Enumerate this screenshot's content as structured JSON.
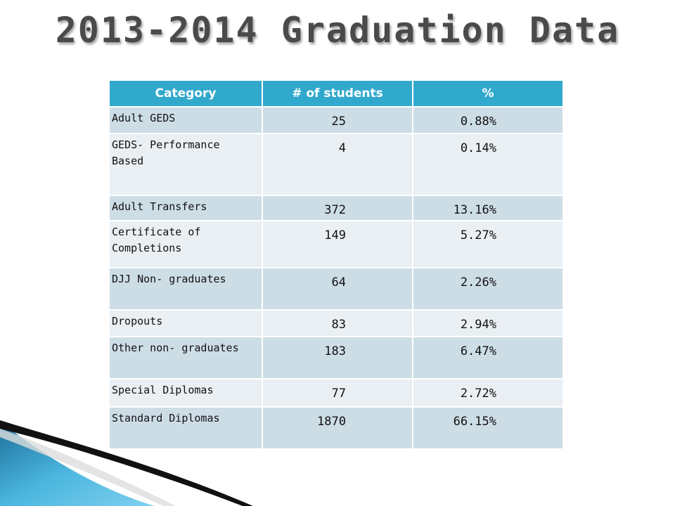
{
  "title": "2013-2014 Graduation Data",
  "table": {
    "headers": [
      "Category",
      "# of students",
      "%"
    ],
    "rows": [
      {
        "category": "Adult GEDS",
        "students": "25",
        "percent": "0.88%"
      },
      {
        "category": "GEDS- Performance Based",
        "students": "4",
        "percent": "0.14%"
      },
      {
        "category": "Adult Transfers",
        "students": "372",
        "percent": "13.16%"
      },
      {
        "category": "Certificate of Completions",
        "students": "149",
        "percent": "5.27%"
      },
      {
        "category": "DJJ Non- graduates",
        "students": "64",
        "percent": "2.26%"
      },
      {
        "category": "Dropouts",
        "students": "83",
        "percent": "2.94%"
      },
      {
        "category": "Other non- graduates",
        "students": "183",
        "percent": "6.47%"
      },
      {
        "category": "Special Diplomas",
        "students": "77",
        "percent": "2.72%"
      },
      {
        "category": "Standard Diplomas",
        "students": "1870",
        "percent": "66.15%"
      }
    ]
  },
  "colors": {
    "header_bg": "#31a9cc",
    "row_dark": "#cddde6",
    "row_light": "#e9eff3",
    "title": "#4a4a4a"
  }
}
